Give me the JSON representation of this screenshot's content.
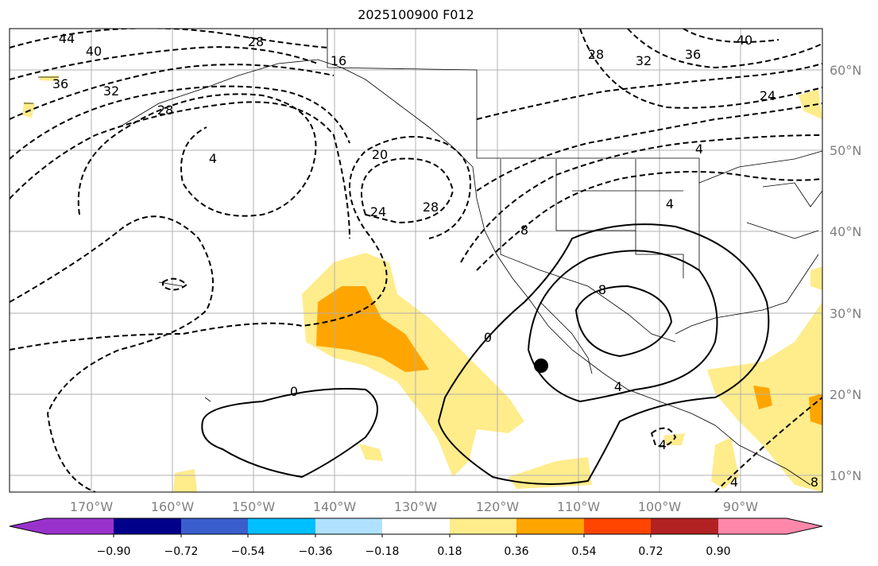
{
  "title": "2025100900 F012",
  "map": {
    "lon_labels": [
      "170°W",
      "160°W",
      "150°W",
      "140°W",
      "130°W",
      "120°W",
      "110°W",
      "100°W",
      "90°W"
    ],
    "lat_labels": [
      "60°N",
      "50°N",
      "40°N",
      "30°N",
      "20°N",
      "10°N"
    ],
    "contour_labels": [
      "44",
      "40",
      "36",
      "32",
      "28",
      "28",
      "16",
      "4",
      "20",
      "24",
      "28",
      "28",
      "32",
      "36",
      "40",
      "24",
      "4",
      "4",
      "8",
      "8",
      "0",
      "0",
      "4",
      "4",
      "4",
      "8"
    ],
    "marker": "black-dot"
  },
  "colorbar": {
    "colors": [
      "#9932cc",
      "#00008b",
      "#3a5fcd",
      "#00bfff",
      "#b0e2ff",
      "#ffffff",
      "#ffec8b",
      "#ffa500",
      "#ff4500",
      "#b22222",
      "#ff88aa"
    ],
    "ticks": [
      "−0.90",
      "−0.72",
      "−0.54",
      "−0.36",
      "−0.18",
      "0.18",
      "0.36",
      "0.54",
      "0.72",
      "0.90"
    ]
  }
}
